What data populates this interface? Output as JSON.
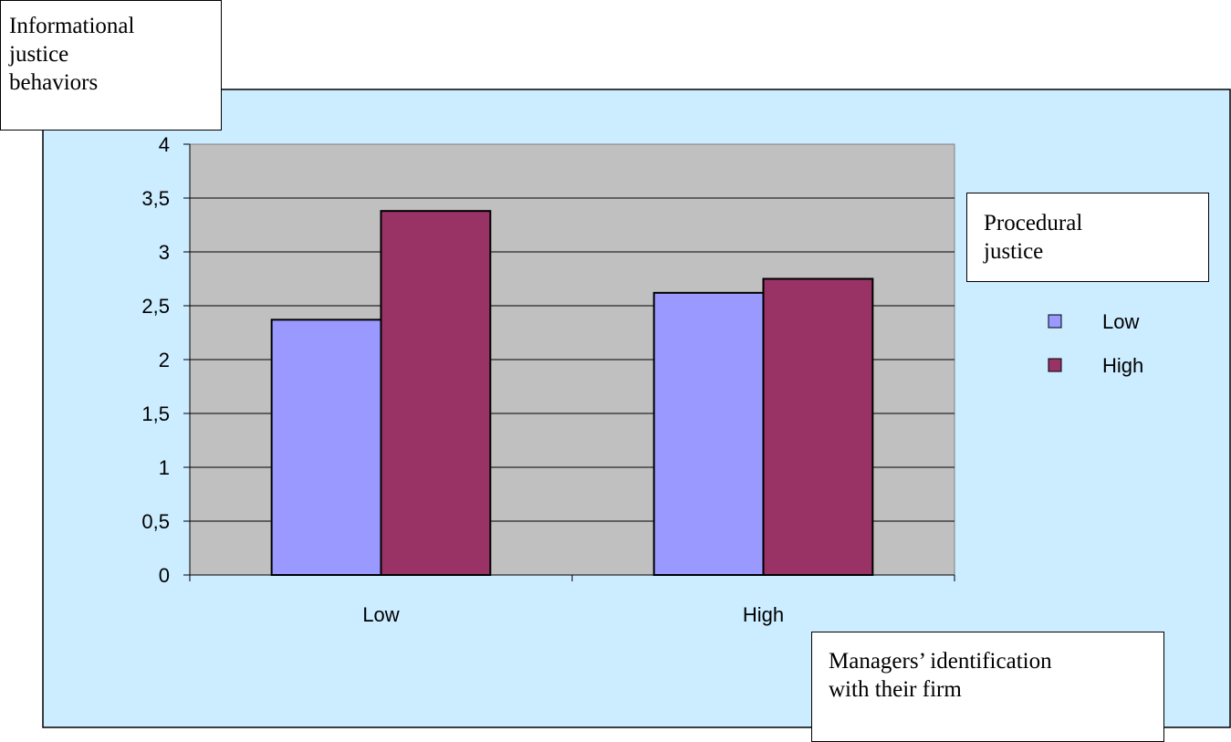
{
  "chart_data": {
    "type": "bar",
    "ylabel": "Informational justice behaviors",
    "xlabel": "Managers’ identification with their firm",
    "categories": [
      "Low",
      "High"
    ],
    "legend_title": "Procedural justice",
    "series": [
      {
        "name": "Low",
        "values": [
          2.37,
          2.62
        ],
        "color": "#9999ff"
      },
      {
        "name": "High",
        "values": [
          3.38,
          2.75
        ],
        "color": "#993366"
      }
    ],
    "ylim": [
      0,
      4
    ],
    "yticks": [
      "0",
      "0,5",
      "1",
      "1,5",
      "2",
      "2,5",
      "3",
      "3,5",
      "4"
    ],
    "grid": true,
    "legend_position": "right",
    "colors": {
      "chart_area_bg": "#ccecff",
      "plot_bg": "#c0c0c0",
      "series_low": "#9999ff",
      "series_high": "#993366"
    }
  },
  "notes": {
    "ylabel_lines": [
      "Informational",
      "justice",
      "behaviors"
    ],
    "legend_title_lines": [
      "Procedural",
      "justice"
    ],
    "xlabel_lines": [
      "Managers’ identification",
      "with their firm"
    ]
  }
}
